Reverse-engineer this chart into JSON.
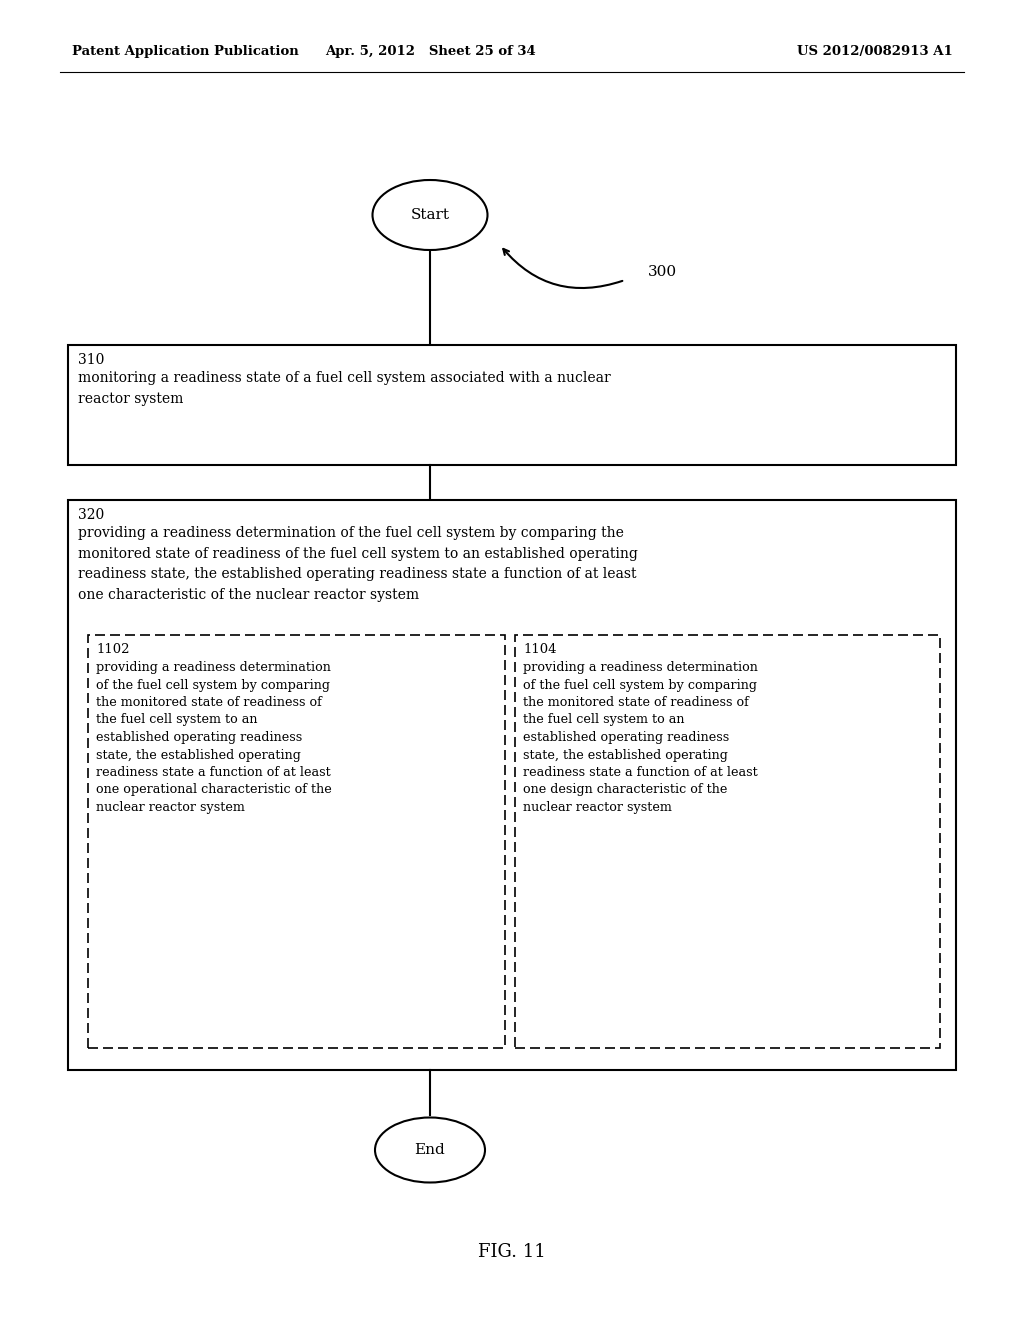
{
  "background_color": "#ffffff",
  "header_left": "Patent Application Publication",
  "header_mid": "Apr. 5, 2012   Sheet 25 of 34",
  "header_right": "US 2012/0082913 A1",
  "fig_label": "FIG. 11",
  "diagram_label": "300",
  "start_label": "Start",
  "end_label": "End",
  "box310_label": "310",
  "box310_text": "monitoring a readiness state of a fuel cell system associated with a nuclear\nreactor system",
  "box320_label": "320",
  "box320_text": "providing a readiness determination of the fuel cell system by comparing the\nmonitored state of readiness of the fuel cell system to an established operating\nreadiness state, the established operating readiness state a function of at least\none characteristic of the nuclear reactor system",
  "box1102_label": "1102",
  "box1102_text": "providing a readiness determination\nof the fuel cell system by comparing\nthe monitored state of readiness of\nthe fuel cell system to an\nestablished operating readiness\nstate, the established operating\nreadiness state a function of at least\none operational characteristic of the\nnuclear reactor system",
  "box1104_label": "1104",
  "box1104_text": "providing a readiness determination\nof the fuel cell system by comparing\nthe monitored state of readiness of\nthe fuel cell system to an\nestablished operating readiness\nstate, the established operating\nreadiness state a function of at least\none design characteristic of the\nnuclear reactor system"
}
